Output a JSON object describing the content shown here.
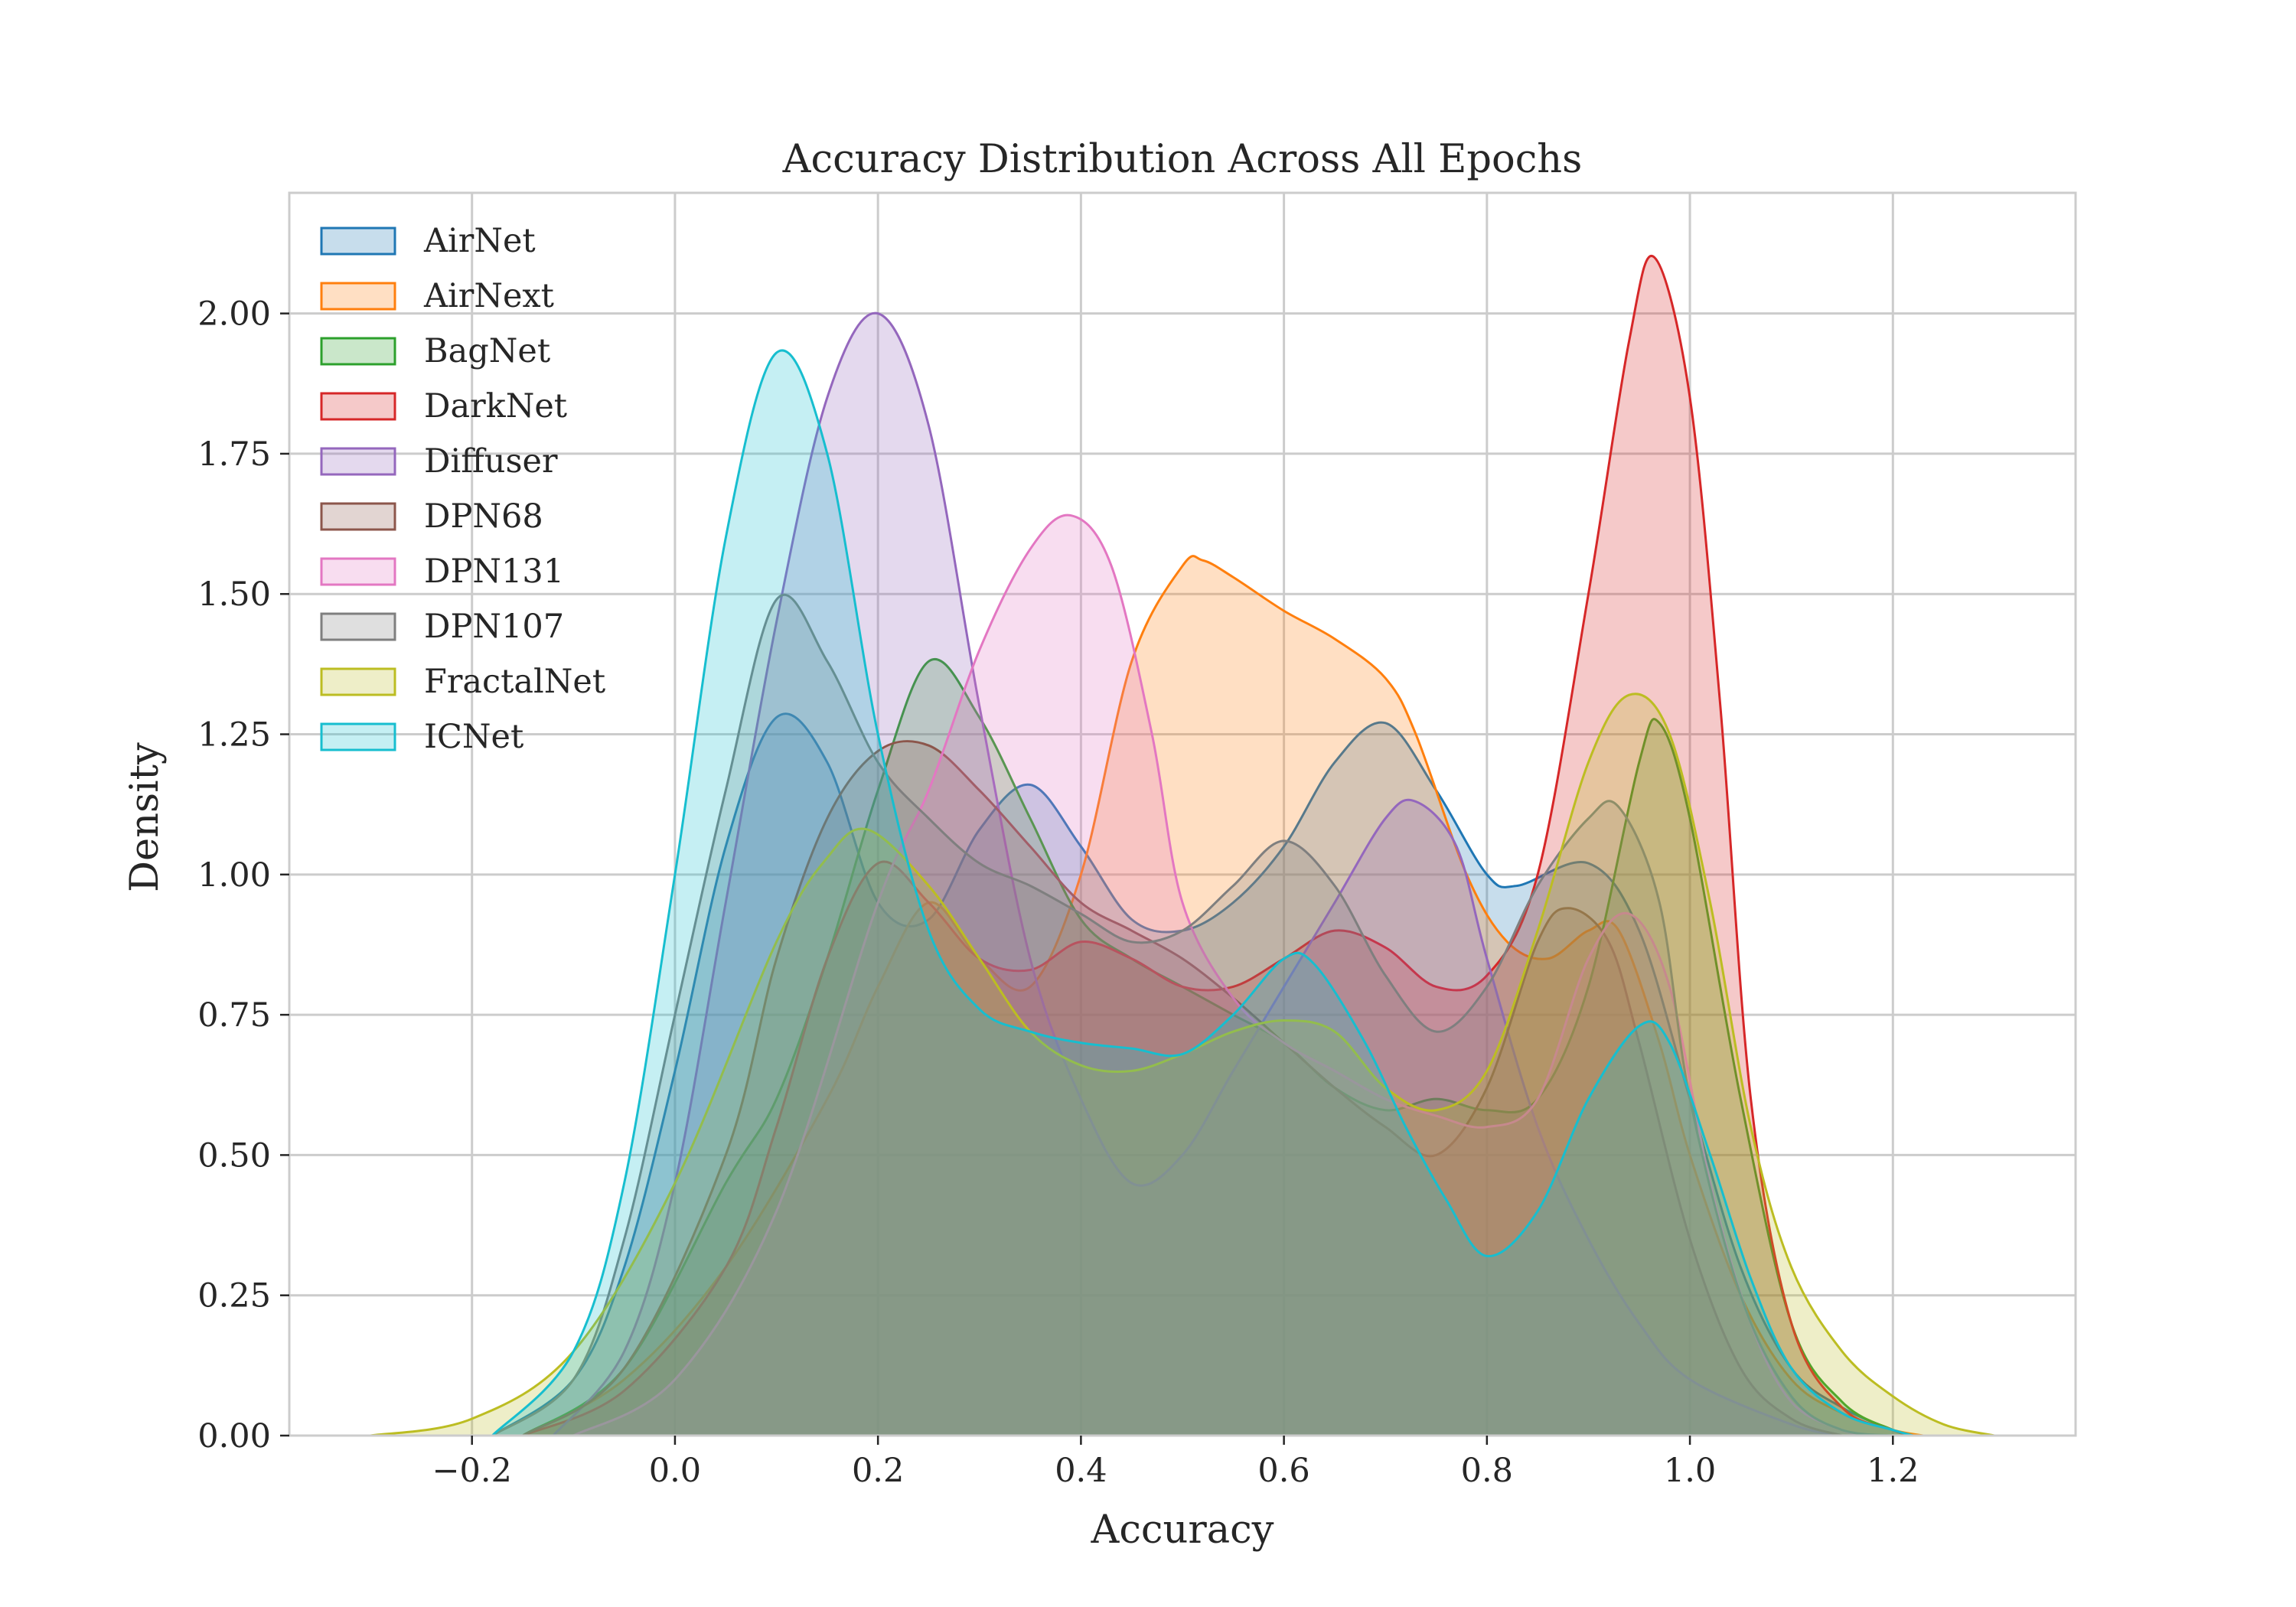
{
  "chart_data": {
    "type": "area",
    "title": "Accuracy Distribution Across All Epochs",
    "xlabel": "Accuracy",
    "ylabel": "Density",
    "xlim": [
      -0.38,
      1.38
    ],
    "ylim": [
      0,
      2.215
    ],
    "xticks": [
      -0.2,
      0.0,
      0.2,
      0.4,
      0.6,
      0.8,
      1.0,
      1.2
    ],
    "xtick_labels": [
      "−0.2",
      "0.0",
      "0.2",
      "0.4",
      "0.6",
      "0.8",
      "1.0",
      "1.2"
    ],
    "yticks": [
      0,
      0.25,
      0.5,
      0.75,
      1.0,
      1.25,
      1.5,
      1.75,
      2.0
    ],
    "ytick_labels": [
      "0.00",
      "0.25",
      "0.50",
      "0.75",
      "1.00",
      "1.25",
      "1.50",
      "1.75",
      "2.00"
    ],
    "grid": true,
    "legend_position": "upper-left",
    "fill_opacity": 0.25,
    "series": [
      {
        "name": "AirNet",
        "color": "#1f77b4",
        "points": [
          [
            -0.18,
            0
          ],
          [
            -0.1,
            0.1
          ],
          [
            -0.05,
            0.3
          ],
          [
            0,
            0.65
          ],
          [
            0.05,
            1.05
          ],
          [
            0.1,
            1.28
          ],
          [
            0.15,
            1.2
          ],
          [
            0.2,
            0.95
          ],
          [
            0.25,
            0.92
          ],
          [
            0.3,
            1.08
          ],
          [
            0.35,
            1.16
          ],
          [
            0.4,
            1.05
          ],
          [
            0.45,
            0.92
          ],
          [
            0.5,
            0.9
          ],
          [
            0.55,
            0.95
          ],
          [
            0.6,
            1.05
          ],
          [
            0.65,
            1.2
          ],
          [
            0.7,
            1.27
          ],
          [
            0.75,
            1.15
          ],
          [
            0.8,
            1.0
          ],
          [
            0.83,
            0.98
          ],
          [
            0.9,
            1.02
          ],
          [
            0.95,
            0.9
          ],
          [
            1.0,
            0.6
          ],
          [
            1.05,
            0.3
          ],
          [
            1.1,
            0.12
          ],
          [
            1.15,
            0.05
          ],
          [
            1.2,
            0.01
          ],
          [
            1.22,
            0
          ]
        ]
      },
      {
        "name": "AirNext",
        "color": "#ff7f0e",
        "points": [
          [
            -0.15,
            0
          ],
          [
            -0.05,
            0.1
          ],
          [
            0.05,
            0.3
          ],
          [
            0.15,
            0.6
          ],
          [
            0.2,
            0.8
          ],
          [
            0.25,
            0.95
          ],
          [
            0.3,
            0.85
          ],
          [
            0.35,
            0.8
          ],
          [
            0.4,
            1.0
          ],
          [
            0.45,
            1.38
          ],
          [
            0.5,
            1.55
          ],
          [
            0.52,
            1.56
          ],
          [
            0.55,
            1.53
          ],
          [
            0.6,
            1.47
          ],
          [
            0.65,
            1.42
          ],
          [
            0.7,
            1.35
          ],
          [
            0.73,
            1.25
          ],
          [
            0.78,
            1.0
          ],
          [
            0.82,
            0.88
          ],
          [
            0.86,
            0.85
          ],
          [
            0.9,
            0.9
          ],
          [
            0.93,
            0.9
          ],
          [
            0.97,
            0.7
          ],
          [
            1.0,
            0.5
          ],
          [
            1.05,
            0.25
          ],
          [
            1.1,
            0.1
          ],
          [
            1.15,
            0.04
          ],
          [
            1.2,
            0.01
          ],
          [
            1.23,
            0
          ]
        ]
      },
      {
        "name": "BagNet",
        "color": "#2ca02c",
        "points": [
          [
            -0.15,
            0
          ],
          [
            -0.05,
            0.12
          ],
          [
            0.05,
            0.45
          ],
          [
            0.1,
            0.6
          ],
          [
            0.15,
            0.85
          ],
          [
            0.2,
            1.15
          ],
          [
            0.25,
            1.38
          ],
          [
            0.3,
            1.28
          ],
          [
            0.35,
            1.1
          ],
          [
            0.4,
            0.92
          ],
          [
            0.45,
            0.85
          ],
          [
            0.5,
            0.8
          ],
          [
            0.55,
            0.75
          ],
          [
            0.6,
            0.7
          ],
          [
            0.65,
            0.62
          ],
          [
            0.7,
            0.58
          ],
          [
            0.75,
            0.6
          ],
          [
            0.8,
            0.58
          ],
          [
            0.85,
            0.6
          ],
          [
            0.9,
            0.8
          ],
          [
            0.95,
            1.2
          ],
          [
            0.97,
            1.27
          ],
          [
            1.0,
            1.1
          ],
          [
            1.05,
            0.6
          ],
          [
            1.1,
            0.2
          ],
          [
            1.15,
            0.06
          ],
          [
            1.2,
            0.01
          ],
          [
            1.22,
            0
          ]
        ]
      },
      {
        "name": "DarkNet",
        "color": "#d62728",
        "points": [
          [
            -0.15,
            0
          ],
          [
            -0.05,
            0.08
          ],
          [
            0.05,
            0.3
          ],
          [
            0.1,
            0.55
          ],
          [
            0.15,
            0.85
          ],
          [
            0.2,
            1.02
          ],
          [
            0.25,
            0.95
          ],
          [
            0.3,
            0.85
          ],
          [
            0.35,
            0.83
          ],
          [
            0.4,
            0.88
          ],
          [
            0.45,
            0.85
          ],
          [
            0.5,
            0.8
          ],
          [
            0.55,
            0.8
          ],
          [
            0.6,
            0.85
          ],
          [
            0.65,
            0.9
          ],
          [
            0.7,
            0.87
          ],
          [
            0.75,
            0.8
          ],
          [
            0.8,
            0.82
          ],
          [
            0.85,
            1.0
          ],
          [
            0.9,
            1.5
          ],
          [
            0.94,
            1.95
          ],
          [
            0.965,
            2.1
          ],
          [
            1.0,
            1.85
          ],
          [
            1.03,
            1.3
          ],
          [
            1.06,
            0.6
          ],
          [
            1.1,
            0.2
          ],
          [
            1.15,
            0.05
          ],
          [
            1.2,
            0.01
          ],
          [
            1.22,
            0
          ]
        ]
      },
      {
        "name": "Diffuser",
        "color": "#9467bd",
        "points": [
          [
            -0.12,
            0
          ],
          [
            -0.05,
            0.15
          ],
          [
            0,
            0.45
          ],
          [
            0.05,
            0.95
          ],
          [
            0.1,
            1.45
          ],
          [
            0.15,
            1.85
          ],
          [
            0.2,
            2.0
          ],
          [
            0.25,
            1.8
          ],
          [
            0.3,
            1.3
          ],
          [
            0.35,
            0.85
          ],
          [
            0.4,
            0.6
          ],
          [
            0.45,
            0.45
          ],
          [
            0.5,
            0.5
          ],
          [
            0.55,
            0.65
          ],
          [
            0.6,
            0.8
          ],
          [
            0.65,
            0.95
          ],
          [
            0.7,
            1.1
          ],
          [
            0.73,
            1.13
          ],
          [
            0.77,
            1.05
          ],
          [
            0.8,
            0.85
          ],
          [
            0.85,
            0.55
          ],
          [
            0.9,
            0.35
          ],
          [
            0.95,
            0.2
          ],
          [
            1.0,
            0.1
          ],
          [
            1.1,
            0.02
          ],
          [
            1.15,
            0
          ]
        ]
      },
      {
        "name": "DPN68",
        "color": "#8c564b",
        "points": [
          [
            -0.15,
            0
          ],
          [
            -0.05,
            0.12
          ],
          [
            0.05,
            0.5
          ],
          [
            0.1,
            0.85
          ],
          [
            0.15,
            1.1
          ],
          [
            0.2,
            1.22
          ],
          [
            0.25,
            1.23
          ],
          [
            0.3,
            1.15
          ],
          [
            0.35,
            1.05
          ],
          [
            0.4,
            0.95
          ],
          [
            0.45,
            0.9
          ],
          [
            0.5,
            0.85
          ],
          [
            0.55,
            0.78
          ],
          [
            0.6,
            0.7
          ],
          [
            0.65,
            0.62
          ],
          [
            0.7,
            0.55
          ],
          [
            0.75,
            0.5
          ],
          [
            0.8,
            0.62
          ],
          [
            0.85,
            0.88
          ],
          [
            0.88,
            0.94
          ],
          [
            0.92,
            0.88
          ],
          [
            0.95,
            0.7
          ],
          [
            1.0,
            0.35
          ],
          [
            1.05,
            0.12
          ],
          [
            1.1,
            0.03
          ],
          [
            1.15,
            0
          ]
        ]
      },
      {
        "name": "DPN131",
        "color": "#e377c2",
        "points": [
          [
            -0.1,
            0
          ],
          [
            0,
            0.1
          ],
          [
            0.1,
            0.4
          ],
          [
            0.2,
            0.95
          ],
          [
            0.25,
            1.15
          ],
          [
            0.3,
            1.4
          ],
          [
            0.35,
            1.58
          ],
          [
            0.39,
            1.64
          ],
          [
            0.43,
            1.55
          ],
          [
            0.47,
            1.25
          ],
          [
            0.5,
            0.95
          ],
          [
            0.55,
            0.78
          ],
          [
            0.6,
            0.7
          ],
          [
            0.65,
            0.65
          ],
          [
            0.7,
            0.6
          ],
          [
            0.75,
            0.57
          ],
          [
            0.8,
            0.55
          ],
          [
            0.85,
            0.6
          ],
          [
            0.9,
            0.85
          ],
          [
            0.94,
            0.93
          ],
          [
            0.98,
            0.8
          ],
          [
            1.02,
            0.45
          ],
          [
            1.06,
            0.2
          ],
          [
            1.1,
            0.06
          ],
          [
            1.15,
            0.01
          ],
          [
            1.18,
            0
          ]
        ]
      },
      {
        "name": "DPN107",
        "color": "#7f7f7f",
        "points": [
          [
            -0.18,
            0
          ],
          [
            -0.1,
            0.1
          ],
          [
            -0.05,
            0.35
          ],
          [
            0,
            0.75
          ],
          [
            0.05,
            1.15
          ],
          [
            0.1,
            1.49
          ],
          [
            0.15,
            1.38
          ],
          [
            0.2,
            1.2
          ],
          [
            0.25,
            1.1
          ],
          [
            0.3,
            1.02
          ],
          [
            0.35,
            0.98
          ],
          [
            0.4,
            0.93
          ],
          [
            0.45,
            0.88
          ],
          [
            0.5,
            0.9
          ],
          [
            0.55,
            0.98
          ],
          [
            0.6,
            1.06
          ],
          [
            0.65,
            0.98
          ],
          [
            0.7,
            0.82
          ],
          [
            0.75,
            0.72
          ],
          [
            0.8,
            0.8
          ],
          [
            0.85,
            0.98
          ],
          [
            0.9,
            1.1
          ],
          [
            0.93,
            1.12
          ],
          [
            0.97,
            0.95
          ],
          [
            1.0,
            0.6
          ],
          [
            1.05,
            0.25
          ],
          [
            1.1,
            0.07
          ],
          [
            1.15,
            0.01
          ],
          [
            1.2,
            0
          ]
        ]
      },
      {
        "name": "FractalNet",
        "color": "#bcbd22",
        "points": [
          [
            -0.3,
            0
          ],
          [
            -0.2,
            0.03
          ],
          [
            -0.1,
            0.15
          ],
          [
            0,
            0.45
          ],
          [
            0.1,
            0.88
          ],
          [
            0.15,
            1.03
          ],
          [
            0.19,
            1.08
          ],
          [
            0.25,
            0.98
          ],
          [
            0.3,
            0.85
          ],
          [
            0.35,
            0.72
          ],
          [
            0.4,
            0.66
          ],
          [
            0.45,
            0.65
          ],
          [
            0.5,
            0.68
          ],
          [
            0.55,
            0.72
          ],
          [
            0.6,
            0.74
          ],
          [
            0.65,
            0.72
          ],
          [
            0.7,
            0.62
          ],
          [
            0.75,
            0.58
          ],
          [
            0.8,
            0.65
          ],
          [
            0.85,
            0.9
          ],
          [
            0.9,
            1.2
          ],
          [
            0.94,
            1.32
          ],
          [
            0.98,
            1.25
          ],
          [
            1.02,
            0.95
          ],
          [
            1.06,
            0.55
          ],
          [
            1.1,
            0.3
          ],
          [
            1.15,
            0.15
          ],
          [
            1.2,
            0.07
          ],
          [
            1.25,
            0.02
          ],
          [
            1.3,
            0
          ]
        ]
      },
      {
        "name": "ICNet",
        "color": "#17becf",
        "points": [
          [
            -0.18,
            0
          ],
          [
            -0.1,
            0.15
          ],
          [
            -0.05,
            0.45
          ],
          [
            0,
            1.0
          ],
          [
            0.05,
            1.6
          ],
          [
            0.1,
            1.93
          ],
          [
            0.15,
            1.75
          ],
          [
            0.2,
            1.25
          ],
          [
            0.25,
            0.9
          ],
          [
            0.3,
            0.76
          ],
          [
            0.35,
            0.72
          ],
          [
            0.4,
            0.7
          ],
          [
            0.45,
            0.69
          ],
          [
            0.5,
            0.68
          ],
          [
            0.55,
            0.75
          ],
          [
            0.6,
            0.85
          ],
          [
            0.63,
            0.84
          ],
          [
            0.68,
            0.7
          ],
          [
            0.72,
            0.55
          ],
          [
            0.76,
            0.42
          ],
          [
            0.8,
            0.32
          ],
          [
            0.85,
            0.4
          ],
          [
            0.9,
            0.6
          ],
          [
            0.95,
            0.73
          ],
          [
            0.98,
            0.7
          ],
          [
            1.02,
            0.5
          ],
          [
            1.06,
            0.28
          ],
          [
            1.1,
            0.12
          ],
          [
            1.15,
            0.04
          ],
          [
            1.2,
            0.01
          ],
          [
            1.22,
            0
          ]
        ]
      }
    ]
  }
}
